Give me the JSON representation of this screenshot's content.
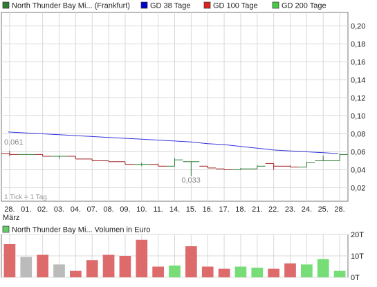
{
  "legend_top": [
    {
      "label": "North Thunder Bay Mi... (Frankfurt)",
      "color": "#2e7d32"
    },
    {
      "label": "GD 38 Tage",
      "color": "#0000cc"
    },
    {
      "label": "GD 100 Tage",
      "color": "#dd2222"
    },
    {
      "label": "GD 200 Tage",
      "color": "#44cc44"
    }
  ],
  "legend_bottom": [
    {
      "label": "North Thunder Bay Mi... Volumen in Euro",
      "color": "#66cc66"
    }
  ],
  "annotations": {
    "tick_note": "1 Tick = 1 Tag",
    "high_label": "0,061",
    "low_label": "0,033",
    "month_label": "März"
  },
  "colors": {
    "up": "#2e7d32",
    "down": "#a02020",
    "ma38": "#3333dd",
    "vol_up": "#77dd77",
    "vol_down": "#dd6b6b",
    "vol_neutral": "#bbbbbb",
    "grid": "#d8d8d8"
  },
  "chart_data": [
    {
      "type": "line",
      "chart_style": "ohlc",
      "x": [
        "28.",
        "01.",
        "02.",
        "03.",
        "04.",
        "07.",
        "08.",
        "09.",
        "10.",
        "11.",
        "14.",
        "15.",
        "16.",
        "17.",
        "18.",
        "21.",
        "22.",
        "23.",
        "24.",
        "25.",
        "28."
      ],
      "y_ticks": [
        "0,20",
        "0,18",
        "0,16",
        "0,14",
        "0,12",
        "0,10",
        "0,08",
        "0,06",
        "0,04",
        "0,02"
      ],
      "ylim": [
        0.005,
        0.215
      ],
      "grid": true,
      "series": [
        {
          "name": "North Thunder Bay Mi... (Frankfurt)",
          "ohlc": [
            {
              "open": 0.058,
              "high": 0.061,
              "low": 0.055,
              "close": 0.057
            },
            {
              "open": 0.057,
              "high": 0.057,
              "low": 0.057,
              "close": 0.057
            },
            {
              "open": 0.057,
              "high": 0.057,
              "low": 0.055,
              "close": 0.055
            },
            {
              "open": 0.055,
              "high": 0.056,
              "low": 0.052,
              "close": 0.055
            },
            {
              "open": 0.055,
              "high": 0.055,
              "low": 0.052,
              "close": 0.052
            },
            {
              "open": 0.052,
              "high": 0.052,
              "low": 0.05,
              "close": 0.05
            },
            {
              "open": 0.05,
              "high": 0.05,
              "low": 0.049,
              "close": 0.049
            },
            {
              "open": 0.049,
              "high": 0.049,
              "low": 0.046,
              "close": 0.046
            },
            {
              "open": 0.046,
              "high": 0.048,
              "low": 0.044,
              "close": 0.046
            },
            {
              "open": 0.046,
              "high": 0.047,
              "low": 0.044,
              "close": 0.044
            },
            {
              "open": 0.044,
              "high": 0.053,
              "low": 0.044,
              "close": 0.051
            },
            {
              "open": 0.049,
              "high": 0.049,
              "low": 0.033,
              "close": 0.049
            },
            {
              "open": 0.044,
              "high": 0.044,
              "low": 0.042,
              "close": 0.042
            },
            {
              "open": 0.041,
              "high": 0.041,
              "low": 0.04,
              "close": 0.04
            },
            {
              "open": 0.04,
              "high": 0.042,
              "low": 0.04,
              "close": 0.041
            },
            {
              "open": 0.041,
              "high": 0.045,
              "low": 0.041,
              "close": 0.044
            },
            {
              "open": 0.047,
              "high": 0.047,
              "low": 0.04,
              "close": 0.044
            },
            {
              "open": 0.044,
              "high": 0.045,
              "low": 0.043,
              "close": 0.043
            },
            {
              "open": 0.043,
              "high": 0.049,
              "low": 0.043,
              "close": 0.048
            },
            {
              "open": 0.05,
              "high": 0.056,
              "low": 0.05,
              "close": 0.05
            },
            {
              "open": 0.05,
              "high": 0.058,
              "low": 0.05,
              "close": 0.057
            }
          ]
        },
        {
          "name": "GD 38 Tage",
          "values": [
            0.082,
            0.081,
            0.08,
            0.079,
            0.078,
            0.077,
            0.076,
            0.075,
            0.074,
            0.073,
            0.072,
            0.071,
            0.069,
            0.068,
            0.066,
            0.064,
            0.062,
            0.061,
            0.06,
            0.059,
            0.058
          ]
        }
      ]
    },
    {
      "type": "bar",
      "categories": [
        "28.",
        "01.",
        "02.",
        "03.",
        "04.",
        "07.",
        "08.",
        "09.",
        "10.",
        "11.",
        "14.",
        "15.",
        "16.",
        "17.",
        "18.",
        "21.",
        "22.",
        "23.",
        "24.",
        "25.",
        "28."
      ],
      "y_ticks": [
        "20T",
        "10T",
        "0T"
      ],
      "ylim": [
        0,
        20000
      ],
      "series": [
        {
          "name": "North Thunder Bay Mi... Volumen in Euro",
          "values": [
            15500,
            9500,
            10500,
            6000,
            3000,
            8000,
            10500,
            10000,
            17500,
            5000,
            5500,
            14500,
            5000,
            4000,
            5000,
            4500,
            4000,
            6500,
            6000,
            8500,
            3000
          ],
          "direction": [
            "down",
            "neutral",
            "down",
            "neutral",
            "down",
            "down",
            "down",
            "down",
            "down",
            "down",
            "up",
            "down",
            "down",
            "down",
            "up",
            "up",
            "down",
            "down",
            "up",
            "up",
            "up"
          ]
        }
      ]
    }
  ]
}
